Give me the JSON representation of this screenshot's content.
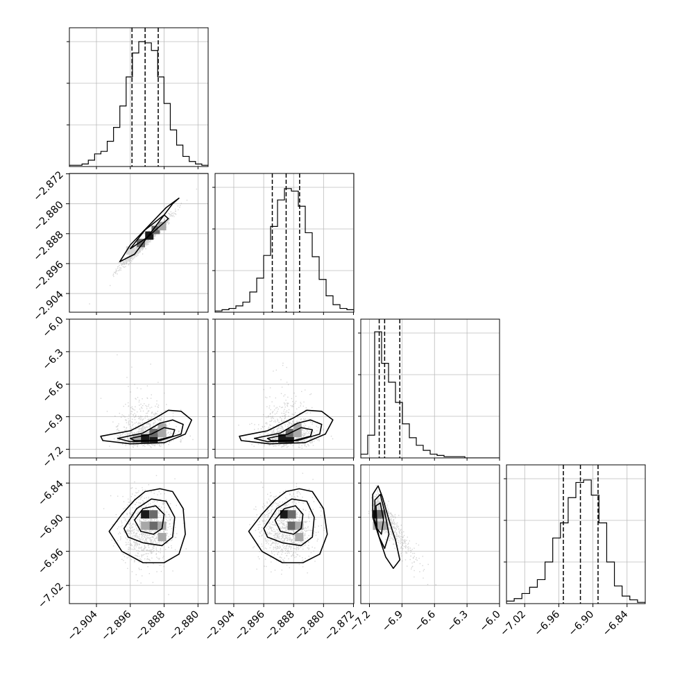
{
  "chart_data": {
    "type": "corner",
    "n_params": 4,
    "params": [
      {
        "range": [
          -2.9104,
          -2.8776
        ],
        "ticks": [
          -2.904,
          -2.896,
          -2.888,
          -2.88
        ],
        "tick_labels": [
          "−2.904",
          "−2.896",
          "−2.888",
          "−2.880"
        ],
        "quantiles": [
          -2.8956,
          -2.8925,
          -2.8894
        ],
        "mean": -2.8925,
        "sd": 0.0031
      },
      {
        "range": [
          -2.909,
          -2.8719
        ],
        "ticks": [
          -2.904,
          -2.896,
          -2.888,
          -2.88,
          -2.872
        ],
        "tick_labels": [
          "−2.904",
          "−2.896",
          "−2.888",
          "−2.880",
          "−2.872"
        ],
        "quantiles": [
          -2.8937,
          -2.89,
          -2.8864
        ],
        "mean": -2.89,
        "sd": 0.0036
      },
      {
        "range": [
          -7.28,
          -6.0
        ],
        "ticks": [
          -7.2,
          -6.9,
          -6.6,
          -6.3,
          -6.0
        ],
        "tick_labels": [
          "−7.2",
          "−6.9",
          "−6.6",
          "−6.3",
          "−6.0"
        ],
        "quantiles": [
          -7.11,
          -7.06,
          -6.92
        ],
        "skewed": true
      },
      {
        "range": [
          -7.052,
          -6.808
        ],
        "ticks": [
          -7.02,
          -6.96,
          -6.9,
          -6.84
        ],
        "tick_labels": [
          "−7.02",
          "−6.96",
          "−6.90",
          "−6.84"
        ],
        "quantiles": [
          -6.952,
          -6.922,
          -6.891
        ],
        "mean": -6.92,
        "sd": 0.03
      }
    ],
    "histograms": [
      {
        "bins_from": -2.9104,
        "bins_to": -2.8776,
        "counts": [
          1,
          1,
          2,
          5,
          10,
          12,
          20,
          31,
          48,
          71,
          90,
          99,
          98,
          92,
          71,
          50,
          29,
          17,
          8,
          4,
          2,
          1
        ],
        "ymax": 110
      },
      {
        "bins_from": -2.909,
        "bins_to": -2.8719,
        "counts": [
          1,
          2,
          3,
          5,
          8,
          16,
          27,
          45,
          68,
          89,
          98,
          96,
          84,
          63,
          44,
          26,
          13,
          6,
          3,
          2
        ],
        "ymax": 110
      },
      {
        "bins_from": -7.28,
        "bins_to": -6.0,
        "counts": [
          3,
          18,
          100,
          75,
          60,
          44,
          27,
          16,
          10,
          6,
          3,
          2,
          1,
          1,
          1,
          0,
          0,
          0,
          0,
          0
        ],
        "ymax": 110
      },
      {
        "bins_from": -7.052,
        "bins_to": -6.808,
        "counts": [
          2,
          4,
          8,
          13,
          19,
          33,
          52,
          64,
          84,
          96,
          98,
          86,
          64,
          33,
          14,
          6,
          3,
          1
        ],
        "ymax": 110
      }
    ],
    "panels": [
      {
        "x_param": 0,
        "y_param": 1,
        "scatter_extent": [
          [
            -2.908,
            -2.9075
          ],
          [
            -2.8785,
            -2.8735
          ]
        ],
        "contours": [
          [
            [
              -2.8985,
              -2.8955
            ],
            [
              -2.895,
              -2.8935
            ],
            [
              -2.886,
              -2.88
            ],
            [
              -2.8845,
              -2.8785
            ],
            [
              -2.8875,
              -2.881
            ],
            [
              -2.896,
              -2.891
            ],
            [
              -2.8985,
              -2.8955
            ]
          ],
          [
            [
              -2.896,
              -2.892
            ],
            [
              -2.892,
              -2.889
            ],
            [
              -2.887,
              -2.884
            ],
            [
              -2.888,
              -2.883
            ],
            [
              -2.8925,
              -2.887
            ],
            [
              -2.896,
              -2.892
            ]
          ]
        ],
        "cells": [
          [
            -2.8935,
            -2.8905,
            3
          ],
          [
            -2.8915,
            -2.8885,
            4
          ],
          [
            -2.89,
            -2.887,
            3
          ],
          [
            -2.8885,
            -2.886,
            2
          ],
          [
            -2.896,
            -2.8925,
            1
          ]
        ]
      },
      {
        "x_param": 0,
        "y_param": 2,
        "scatter_extent": [
          [
            -2.909,
            -7.2
          ],
          [
            -2.878,
            -6.25
          ]
        ],
        "contours": [
          [
            [
              -2.903,
              -7.08
            ],
            [
              -2.896,
              -7.03
            ],
            [
              -2.89,
              -6.91
            ],
            [
              -2.887,
              -6.84
            ],
            [
              -2.884,
              -6.85
            ],
            [
              -2.8815,
              -6.93
            ],
            [
              -2.883,
              -7.06
            ],
            [
              -2.888,
              -7.14
            ],
            [
              -2.896,
              -7.15
            ],
            [
              -2.9025,
              -7.12
            ],
            [
              -2.903,
              -7.08
            ]
          ],
          [
            [
              -2.899,
              -7.1
            ],
            [
              -2.893,
              -7.05
            ],
            [
              -2.889,
              -6.96
            ],
            [
              -2.886,
              -6.93
            ],
            [
              -2.8835,
              -6.97
            ],
            [
              -2.884,
              -7.06
            ],
            [
              -2.889,
              -7.12
            ],
            [
              -2.896,
              -7.13
            ],
            [
              -2.899,
              -7.1
            ]
          ],
          [
            [
              -2.896,
              -7.1
            ],
            [
              -2.891,
              -7.06
            ],
            [
              -2.888,
              -7.0
            ],
            [
              -2.8855,
              -7.02
            ],
            [
              -2.886,
              -7.08
            ],
            [
              -2.89,
              -7.12
            ],
            [
              -2.895,
              -7.12
            ],
            [
              -2.896,
              -7.1
            ]
          ]
        ],
        "cells": [
          [
            -2.8925,
            -7.1,
            4
          ],
          [
            -2.8905,
            -7.1,
            4
          ],
          [
            -2.8905,
            -7.05,
            3
          ],
          [
            -2.8885,
            -7.05,
            2
          ],
          [
            -2.8885,
            -7.0,
            2
          ],
          [
            -2.8945,
            -7.1,
            2
          ]
        ]
      },
      {
        "x_param": 1,
        "y_param": 2,
        "scatter_extent": [
          [
            -2.908,
            -7.2
          ],
          [
            -2.8725,
            -6.25
          ]
        ],
        "contours": [
          [
            [
              -2.9025,
              -7.08
            ],
            [
              -2.895,
              -7.03
            ],
            [
              -2.888,
              -6.91
            ],
            [
              -2.8845,
              -6.84
            ],
            [
              -2.8805,
              -6.85
            ],
            [
              -2.8775,
              -6.93
            ],
            [
              -2.8795,
              -7.06
            ],
            [
              -2.885,
              -7.14
            ],
            [
              -2.8945,
              -7.15
            ],
            [
              -2.902,
              -7.12
            ],
            [
              -2.9025,
              -7.08
            ]
          ],
          [
            [
              -2.8985,
              -7.1
            ],
            [
              -2.8915,
              -7.05
            ],
            [
              -2.887,
              -6.96
            ],
            [
              -2.8835,
              -6.93
            ],
            [
              -2.8805,
              -6.97
            ],
            [
              -2.881,
              -7.06
            ],
            [
              -2.887,
              -7.12
            ],
            [
              -2.895,
              -7.13
            ],
            [
              -2.8985,
              -7.1
            ]
          ],
          [
            [
              -2.895,
              -7.1
            ],
            [
              -2.8895,
              -7.06
            ],
            [
              -2.886,
              -7.0
            ],
            [
              -2.883,
              -7.02
            ],
            [
              -2.8835,
              -7.08
            ],
            [
              -2.888,
              -7.12
            ],
            [
              -2.894,
              -7.12
            ],
            [
              -2.895,
              -7.1
            ]
          ]
        ],
        "cells": [
          [
            -2.891,
            -7.1,
            4
          ],
          [
            -2.889,
            -7.1,
            4
          ],
          [
            -2.889,
            -7.05,
            3
          ],
          [
            -2.887,
            -7.05,
            2
          ],
          [
            -2.887,
            -7.0,
            2
          ]
        ]
      },
      {
        "x_param": 0,
        "y_param": 3,
        "scatter_extent": [
          [
            -2.9085,
            -7.045
          ],
          [
            -2.878,
            -6.815
          ]
        ],
        "contours": [
          [
            [
              -2.901,
              -6.925
            ],
            [
              -2.898,
              -6.895
            ],
            [
              -2.895,
              -6.87
            ],
            [
              -2.8925,
              -6.855
            ],
            [
              -2.889,
              -6.85
            ],
            [
              -2.886,
              -6.855
            ],
            [
              -2.8835,
              -6.885
            ],
            [
              -2.883,
              -6.93
            ],
            [
              -2.8845,
              -6.965
            ],
            [
              -2.888,
              -6.98
            ],
            [
              -2.893,
              -6.98
            ],
            [
              -2.898,
              -6.96
            ],
            [
              -2.901,
              -6.925
            ]
          ],
          [
            [
              -2.8975,
              -6.92
            ],
            [
              -2.8945,
              -6.885
            ],
            [
              -2.891,
              -6.868
            ],
            [
              -2.8875,
              -6.872
            ],
            [
              -2.8855,
              -6.9
            ],
            [
              -2.886,
              -6.935
            ],
            [
              -2.8885,
              -6.95
            ],
            [
              -2.893,
              -6.945
            ],
            [
              -2.8965,
              -6.935
            ],
            [
              -2.8975,
              -6.92
            ]
          ],
          [
            [
              -2.895,
              -6.905
            ],
            [
              -2.893,
              -6.885
            ],
            [
              -2.89,
              -6.88
            ],
            [
              -2.888,
              -6.895
            ],
            [
              -2.8885,
              -6.92
            ],
            [
              -2.8905,
              -6.93
            ],
            [
              -2.8935,
              -6.925
            ],
            [
              -2.895,
              -6.905
            ]
          ]
        ],
        "cells": [
          [
            -2.8925,
            -6.895,
            4
          ],
          [
            -2.8905,
            -6.895,
            3
          ],
          [
            -2.8905,
            -6.915,
            3
          ],
          [
            -2.8885,
            -6.915,
            2
          ],
          [
            -2.8885,
            -6.935,
            2
          ],
          [
            -2.8925,
            -6.915,
            2
          ]
        ]
      },
      {
        "x_param": 1,
        "y_param": 3,
        "scatter_extent": [
          [
            -2.908,
            -7.045
          ],
          [
            -2.873,
            -6.815
          ]
        ],
        "contours": [
          [
            [
              -2.9,
              -6.925
            ],
            [
              -2.8965,
              -6.895
            ],
            [
              -2.893,
              -6.87
            ],
            [
              -2.89,
              -6.855
            ],
            [
              -2.8865,
              -6.85
            ],
            [
              -2.883,
              -6.855
            ],
            [
              -2.88,
              -6.885
            ],
            [
              -2.879,
              -6.93
            ],
            [
              -2.881,
              -6.965
            ],
            [
              -2.8855,
              -6.98
            ],
            [
              -2.891,
              -6.98
            ],
            [
              -2.8965,
              -6.96
            ],
            [
              -2.9,
              -6.925
            ]
          ],
          [
            [
              -2.896,
              -6.92
            ],
            [
              -2.8925,
              -6.885
            ],
            [
              -2.8885,
              -6.868
            ],
            [
              -2.8845,
              -6.872
            ],
            [
              -2.8825,
              -6.9
            ],
            [
              -2.883,
              -6.935
            ],
            [
              -2.886,
              -6.95
            ],
            [
              -2.891,
              -6.945
            ],
            [
              -2.895,
              -6.935
            ],
            [
              -2.896,
              -6.92
            ]
          ],
          [
            [
              -2.893,
              -6.905
            ],
            [
              -2.8905,
              -6.885
            ],
            [
              -2.8875,
              -6.88
            ],
            [
              -2.8855,
              -6.895
            ],
            [
              -2.886,
              -6.92
            ],
            [
              -2.888,
              -6.93
            ],
            [
              -2.8915,
              -6.925
            ],
            [
              -2.893,
              -6.905
            ]
          ]
        ],
        "cells": [
          [
            -2.8905,
            -6.895,
            4
          ],
          [
            -2.8885,
            -6.895,
            3
          ],
          [
            -2.8885,
            -6.915,
            3
          ],
          [
            -2.8865,
            -6.915,
            2
          ],
          [
            -2.8865,
            -6.935,
            2
          ]
        ]
      },
      {
        "x_param": 2,
        "y_param": 3,
        "scatter_extent": [
          [
            -7.22,
            -7.0
          ],
          [
            -6.6,
            -6.84
          ]
        ],
        "contours": [
          [
            [
              -7.17,
              -6.86
            ],
            [
              -7.12,
              -6.845
            ],
            [
              -7.08,
              -6.865
            ],
            [
              -7.02,
              -6.905
            ],
            [
              -6.96,
              -6.94
            ],
            [
              -6.92,
              -6.975
            ],
            [
              -6.98,
              -6.99
            ],
            [
              -7.05,
              -6.97
            ],
            [
              -7.12,
              -6.93
            ],
            [
              -7.17,
              -6.9
            ],
            [
              -7.17,
              -6.86
            ]
          ],
          [
            [
              -7.15,
              -6.87
            ],
            [
              -7.1,
              -6.86
            ],
            [
              -7.06,
              -6.89
            ],
            [
              -7.02,
              -6.93
            ],
            [
              -7.06,
              -6.955
            ],
            [
              -7.11,
              -6.935
            ],
            [
              -7.15,
              -6.905
            ],
            [
              -7.15,
              -6.87
            ]
          ],
          [
            [
              -7.14,
              -6.88
            ],
            [
              -7.1,
              -6.875
            ],
            [
              -7.07,
              -6.905
            ],
            [
              -7.09,
              -6.93
            ],
            [
              -7.13,
              -6.92
            ],
            [
              -7.14,
              -6.88
            ]
          ]
        ],
        "cells": [
          [
            -7.13,
            -6.895,
            4
          ],
          [
            -7.1,
            -6.895,
            3
          ],
          [
            -7.1,
            -6.915,
            3
          ],
          [
            -7.07,
            -6.915,
            2
          ],
          [
            -7.13,
            -6.915,
            2
          ]
        ]
      }
    ],
    "grid": true,
    "colors": {
      "line": "#000000",
      "scatter": "#888888",
      "grid": "#bbbbbb"
    }
  }
}
